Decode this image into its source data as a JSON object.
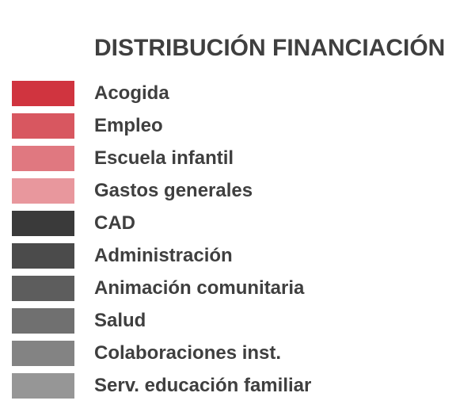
{
  "chart_data": {
    "type": "pie",
    "title": "DISTRIBUCIÓN FINANCIACIÓN",
    "legend": [
      {
        "label": "Acogida",
        "color": "#d0343f"
      },
      {
        "label": "Empleo",
        "color": "#d85760"
      },
      {
        "label": "Escuela infantil",
        "color": "#e07880"
      },
      {
        "label": "Gastos generales",
        "color": "#e8979d"
      },
      {
        "label": "CAD",
        "color": "#3a3a3a"
      },
      {
        "label": "Administración",
        "color": "#4b4b4b"
      },
      {
        "label": "Animación comunitaria",
        "color": "#5d5d5d"
      },
      {
        "label": "Salud",
        "color": "#707070"
      },
      {
        "label": "Colaboraciones inst.",
        "color": "#838383"
      },
      {
        "label": "Serv. educación familiar",
        "color": "#969696"
      }
    ]
  }
}
